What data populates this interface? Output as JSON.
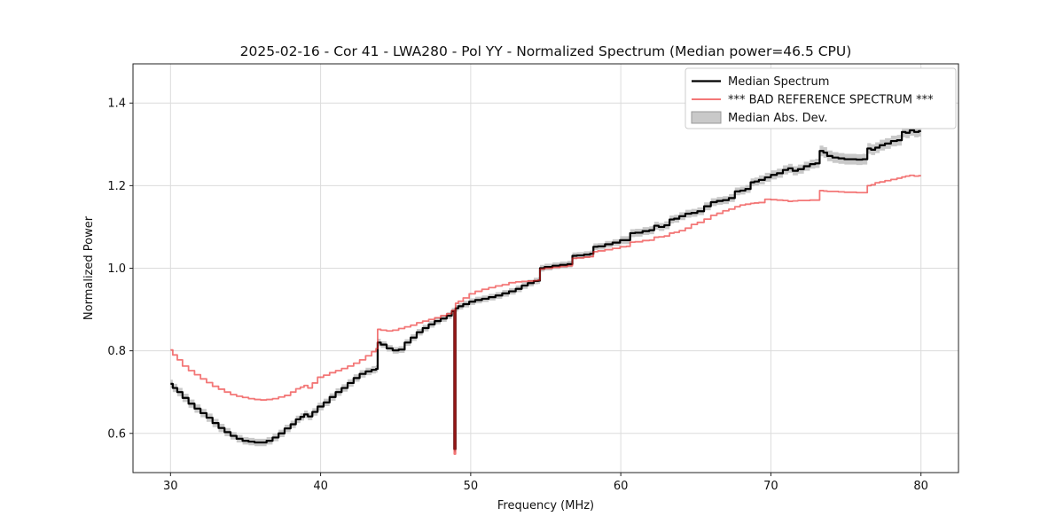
{
  "title": "2025-02-16 - Cor 41 - LWA280 - Pol YY - Normalized Spectrum (Median power=46.5 CPU)",
  "axes": {
    "xlabel": "Frequency (MHz)",
    "ylabel": "Normalized Power",
    "xticks": [
      30,
      40,
      50,
      60,
      70,
      80
    ],
    "yticks": [
      0.6,
      0.8,
      1.0,
      1.2,
      1.4
    ],
    "xlim": [
      27.5,
      82.5
    ],
    "ylim": [
      0.505,
      1.495
    ],
    "grid": true
  },
  "colors": {
    "median_line": "#000000",
    "bad_reference_line": "rgba(235,35,35,0.62)",
    "bad_reference_legend": "#f37777",
    "mad_band": "#c9c9c9",
    "mad_band_edge": "#999999",
    "grid": "#dcdcdc",
    "spine": "#222222",
    "legend_border": "#cccccc",
    "legend_bg": "#ffffff"
  },
  "legend": {
    "position": "upper right",
    "entries": [
      {
        "id": "median-spectrum",
        "label": "Median Spectrum",
        "type": "line",
        "color": "#000000"
      },
      {
        "id": "bad-reference-spectrum",
        "label": "*** BAD REFERENCE SPECTRUM ***",
        "type": "line",
        "color": "#f37777"
      },
      {
        "id": "median-abs-dev",
        "label": "Median Abs. Dev.",
        "type": "patch",
        "color": "#c9c9c9"
      }
    ]
  },
  "chart_data": {
    "type": "line",
    "title": "2025-02-16 - Cor 41 - LWA280 - Pol YY - Normalized Spectrum (Median power=46.5 CPU)",
    "xlabel": "Frequency (MHz)",
    "ylabel": "Normalized Power",
    "xlim": [
      27.5,
      82.5
    ],
    "ylim": [
      0.505,
      1.495
    ],
    "grid": true,
    "legend_position": "upper right",
    "x": [
      30.0,
      30.3,
      30.6,
      31.0,
      31.4,
      31.8,
      32.2,
      32.6,
      33.0,
      33.4,
      33.8,
      34.2,
      34.6,
      35.0,
      35.4,
      35.8,
      36.2,
      36.6,
      37.0,
      37.4,
      37.8,
      38.2,
      38.5,
      38.8,
      39.0,
      39.3,
      39.6,
      40.0,
      40.4,
      40.8,
      41.2,
      41.6,
      42.0,
      42.4,
      42.8,
      43.2,
      43.6,
      43.78,
      43.82,
      44.2,
      44.6,
      45.0,
      45.4,
      45.8,
      46.2,
      46.6,
      47.0,
      47.4,
      47.8,
      48.2,
      48.6,
      48.88,
      48.93,
      49.05,
      49.3,
      49.7,
      50.1,
      50.5,
      51.0,
      51.4,
      51.9,
      52.3,
      52.8,
      53.2,
      53.6,
      54.0,
      54.4,
      54.58,
      54.65,
      55.2,
      55.7,
      56.2,
      56.7,
      56.85,
      57.3,
      57.8,
      58.1,
      58.25,
      58.7,
      59.2,
      59.7,
      60.2,
      60.55,
      60.7,
      61.2,
      61.7,
      62.1,
      62.35,
      62.7,
      63.1,
      63.4,
      63.7,
      64.1,
      64.5,
      64.9,
      65.3,
      65.8,
      66.2,
      66.6,
      67.0,
      67.4,
      67.8,
      68.1,
      68.5,
      68.8,
      69.0,
      69.4,
      69.8,
      70.2,
      70.6,
      71.0,
      71.3,
      71.6,
      72.0,
      72.4,
      72.8,
      73.1,
      73.4,
      73.6,
      73.9,
      74.3,
      74.7,
      75.1,
      75.5,
      75.9,
      76.3,
      76.55,
      76.8,
      77.1,
      77.4,
      77.8,
      78.2,
      78.6,
      78.85,
      79.1,
      79.4,
      79.7,
      80.0
    ],
    "series": [
      {
        "id": "median-spectrum",
        "name": "Median Spectrum",
        "color": "#000000",
        "line_width": 2.2,
        "y": [
          0.72,
          0.71,
          0.7,
          0.686,
          0.672,
          0.66,
          0.649,
          0.638,
          0.625,
          0.613,
          0.603,
          0.594,
          0.587,
          0.582,
          0.58,
          0.578,
          0.578,
          0.582,
          0.59,
          0.6,
          0.612,
          0.622,
          0.634,
          0.64,
          0.646,
          0.641,
          0.652,
          0.665,
          0.675,
          0.688,
          0.7,
          0.71,
          0.722,
          0.734,
          0.744,
          0.75,
          0.754,
          0.756,
          0.82,
          0.815,
          0.806,
          0.801,
          0.803,
          0.82,
          0.832,
          0.845,
          0.855,
          0.864,
          0.872,
          0.878,
          0.885,
          0.896,
          0.562,
          0.903,
          0.908,
          0.913,
          0.919,
          0.923,
          0.926,
          0.93,
          0.934,
          0.939,
          0.944,
          0.95,
          0.958,
          0.964,
          0.969,
          0.97,
          1.0,
          1.003,
          1.006,
          1.008,
          1.01,
          1.03,
          1.031,
          1.033,
          1.035,
          1.052,
          1.053,
          1.058,
          1.062,
          1.068,
          1.068,
          1.085,
          1.086,
          1.09,
          1.092,
          1.103,
          1.1,
          1.104,
          1.118,
          1.12,
          1.126,
          1.132,
          1.134,
          1.138,
          1.15,
          1.16,
          1.163,
          1.165,
          1.17,
          1.186,
          1.188,
          1.192,
          1.208,
          1.21,
          1.214,
          1.22,
          1.226,
          1.23,
          1.238,
          1.242,
          1.236,
          1.24,
          1.247,
          1.252,
          1.254,
          1.284,
          1.28,
          1.272,
          1.268,
          1.266,
          1.264,
          1.264,
          1.263,
          1.264,
          1.29,
          1.287,
          1.292,
          1.298,
          1.302,
          1.308,
          1.31,
          1.33,
          1.328,
          1.334,
          1.33,
          1.332
        ]
      },
      {
        "id": "bad-reference-spectrum",
        "name": "*** BAD REFERENCE SPECTRUM ***",
        "color": "rgba(235,35,35,0.62)",
        "line_width": 1.8,
        "y": [
          0.802,
          0.79,
          0.778,
          0.763,
          0.752,
          0.742,
          0.732,
          0.723,
          0.714,
          0.707,
          0.7,
          0.694,
          0.69,
          0.687,
          0.684,
          0.682,
          0.681,
          0.682,
          0.684,
          0.688,
          0.692,
          0.7,
          0.708,
          0.712,
          0.716,
          0.71,
          0.722,
          0.736,
          0.741,
          0.747,
          0.752,
          0.757,
          0.763,
          0.77,
          0.778,
          0.788,
          0.798,
          0.805,
          0.852,
          0.85,
          0.848,
          0.85,
          0.854,
          0.858,
          0.862,
          0.868,
          0.872,
          0.876,
          0.88,
          0.885,
          0.89,
          0.898,
          0.55,
          0.915,
          0.92,
          0.928,
          0.938,
          0.944,
          0.949,
          0.953,
          0.957,
          0.96,
          0.965,
          0.967,
          0.968,
          0.969,
          0.97,
          0.971,
          0.998,
          1.0,
          1.002,
          1.004,
          1.006,
          1.024,
          1.025,
          1.027,
          1.028,
          1.04,
          1.042,
          1.045,
          1.048,
          1.052,
          1.053,
          1.063,
          1.064,
          1.067,
          1.068,
          1.075,
          1.076,
          1.078,
          1.085,
          1.087,
          1.091,
          1.097,
          1.106,
          1.111,
          1.119,
          1.128,
          1.133,
          1.139,
          1.143,
          1.149,
          1.153,
          1.155,
          1.157,
          1.158,
          1.159,
          1.167,
          1.166,
          1.165,
          1.164,
          1.162,
          1.163,
          1.164,
          1.164,
          1.165,
          1.165,
          1.188,
          1.187,
          1.186,
          1.186,
          1.185,
          1.184,
          1.184,
          1.183,
          1.183,
          1.2,
          1.202,
          1.207,
          1.209,
          1.212,
          1.215,
          1.218,
          1.221,
          1.223,
          1.225,
          1.223,
          1.224
        ]
      },
      {
        "id": "median-abs-dev",
        "name": "Median Abs. Dev.",
        "type": "band_around_series",
        "around": "median-spectrum",
        "color": "#c9c9c9",
        "mad_segments": [
          {
            "until": 34.0,
            "halfwidth": 0.01
          },
          {
            "until": 44.0,
            "halfwidth": 0.009
          },
          {
            "until": 60.0,
            "halfwidth": 0.008
          },
          {
            "until": 69.0,
            "halfwidth": 0.0095
          },
          {
            "until": 73.2,
            "halfwidth": 0.011
          },
          {
            "until": 80.1,
            "halfwidth": 0.013
          }
        ]
      }
    ]
  }
}
